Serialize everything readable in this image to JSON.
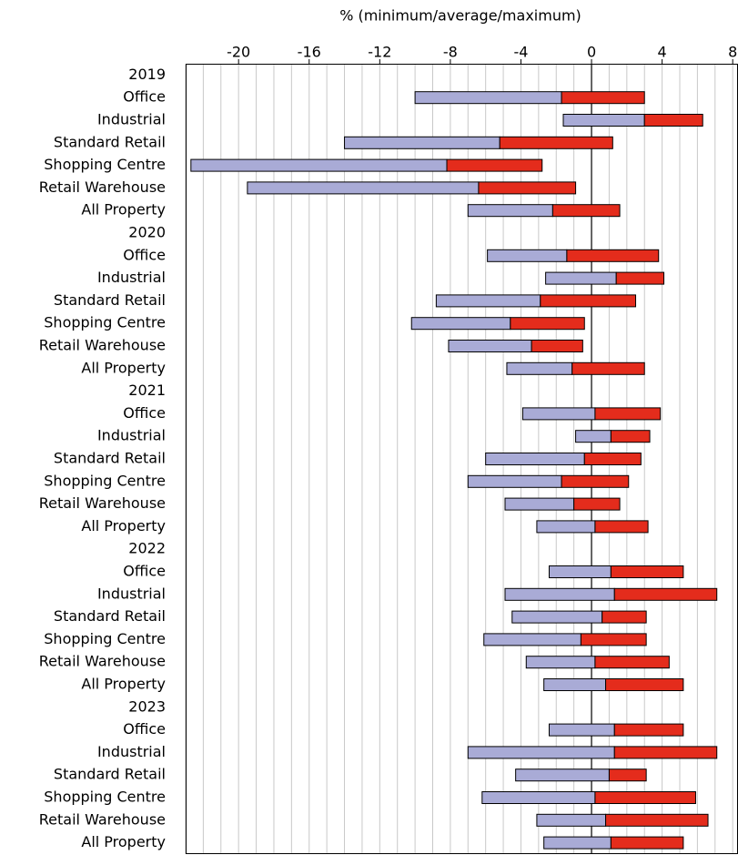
{
  "chart_data": {
    "type": "range_bar",
    "xlabel": "% (minimum/average/maximum)",
    "categories": [
      "2019",
      "Office",
      "Industrial",
      "Standard Retail",
      "Shopping Centre",
      "Retail Warehouse",
      "All Property",
      "2020",
      "Office",
      "Industrial",
      "Standard Retail",
      "Shopping Centre",
      "Retail Warehouse",
      "All Property",
      "2021",
      "Office",
      "Industrial",
      "Standard Retail",
      "Shopping Centre",
      "Retail Warehouse",
      "All Property",
      "2022",
      "Office",
      "Industrial",
      "Standard Retail",
      "Shopping Centre",
      "Retail Warehouse",
      "All Property",
      "2023",
      "Office",
      "Industrial",
      "Standard Retail",
      "Shopping Centre",
      "Retail Warehouse",
      "All Property"
    ],
    "min": [
      null,
      -10.0,
      -1.6,
      -14.0,
      -22.7,
      -19.5,
      -7.0,
      null,
      -5.9,
      -2.6,
      -8.8,
      -10.2,
      -8.1,
      -4.8,
      null,
      -3.9,
      -0.9,
      -6.0,
      -7.0,
      -4.9,
      -3.1,
      null,
      -2.4,
      -4.9,
      -4.5,
      -6.1,
      -3.7,
      -2.7,
      null,
      -2.4,
      -7.0,
      -4.3,
      -6.2,
      -3.1,
      -2.7
    ],
    "avg": [
      null,
      -1.7,
      3.0,
      -5.2,
      -8.2,
      -6.4,
      -2.2,
      null,
      -1.4,
      1.4,
      -2.9,
      -4.6,
      -3.4,
      -1.1,
      null,
      0.2,
      1.1,
      -0.4,
      -1.7,
      -1.0,
      0.2,
      null,
      1.1,
      1.3,
      0.6,
      -0.6,
      0.2,
      0.8,
      null,
      1.3,
      1.3,
      1.0,
      0.2,
      0.8,
      1.1
    ],
    "max": [
      null,
      3.0,
      6.3,
      1.2,
      -2.8,
      -0.9,
      1.6,
      null,
      3.8,
      4.1,
      2.5,
      -0.4,
      -0.5,
      3.0,
      null,
      3.9,
      3.3,
      2.8,
      2.1,
      1.6,
      3.2,
      null,
      5.2,
      7.1,
      3.1,
      3.1,
      4.4,
      5.2,
      null,
      5.2,
      7.1,
      3.1,
      5.9,
      6.6,
      5.2
    ],
    "low_color": "#a9abd6",
    "high_color": "#e42c1c",
    "xlim": [
      -23,
      8.3
    ],
    "xticks": [
      -20,
      -16,
      -12,
      -8,
      -4,
      0,
      4,
      8
    ],
    "grid": true,
    "minor_grid": 1
  }
}
